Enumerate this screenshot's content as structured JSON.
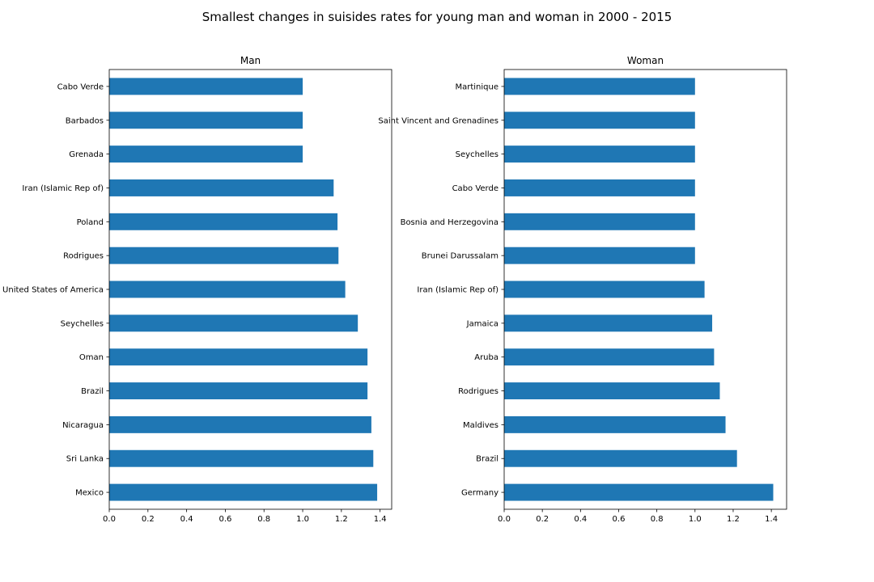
{
  "title": "Smallest changes in suisides rates for young man and woman in 2000 - 2015",
  "chart_data": [
    {
      "type": "bar",
      "orientation": "horizontal",
      "title": "Man",
      "xlabel": "",
      "ylabel": "",
      "xlim": [
        0,
        1.46
      ],
      "xticks": [
        "0.0",
        "0.2",
        "0.4",
        "0.6",
        "0.8",
        "1.0",
        "1.2",
        "1.4"
      ],
      "categories": [
        "Cabo Verde",
        "Barbados",
        "Grenada",
        "Iran (Islamic Rep of)",
        "Poland",
        "Rodrigues",
        "United States of America",
        "Seychelles",
        "Oman",
        "Brazil",
        "Nicaragua",
        "Sri Lanka",
        "Mexico"
      ],
      "values": [
        1.0,
        1.0,
        1.0,
        1.16,
        1.18,
        1.185,
        1.22,
        1.285,
        1.335,
        1.335,
        1.355,
        1.365,
        1.385
      ],
      "color": "#1f77b4",
      "grid": false,
      "legend": false
    },
    {
      "type": "bar",
      "orientation": "horizontal",
      "title": "Woman",
      "xlabel": "",
      "ylabel": "",
      "xlim": [
        0,
        1.48
      ],
      "xticks": [
        "0.0",
        "0.2",
        "0.4",
        "0.6",
        "0.8",
        "1.0",
        "1.2",
        "1.4"
      ],
      "categories": [
        "Martinique",
        "Saint Vincent and Grenadines",
        "Seychelles",
        "Cabo Verde",
        "Bosnia and Herzegovina",
        "Brunei Darussalam",
        "Iran (Islamic Rep of)",
        "Jamaica",
        "Aruba",
        "Rodrigues",
        "Maldives",
        "Brazil",
        "Germany"
      ],
      "values": [
        1.0,
        1.0,
        1.0,
        1.0,
        1.0,
        1.0,
        1.05,
        1.09,
        1.1,
        1.13,
        1.16,
        1.22,
        1.41
      ],
      "color": "#1f77b4",
      "grid": false,
      "legend": false
    }
  ]
}
